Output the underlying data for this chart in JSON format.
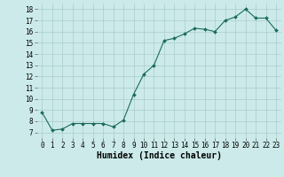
{
  "x": [
    0,
    1,
    2,
    3,
    4,
    5,
    6,
    7,
    8,
    9,
    10,
    11,
    12,
    13,
    14,
    15,
    16,
    17,
    18,
    19,
    20,
    21,
    22,
    23
  ],
  "y": [
    8.8,
    7.2,
    7.3,
    7.8,
    7.8,
    7.8,
    7.8,
    7.5,
    8.1,
    10.4,
    12.2,
    13.0,
    15.2,
    15.4,
    15.8,
    16.3,
    16.2,
    16.0,
    17.0,
    17.3,
    18.0,
    17.2,
    17.2,
    16.1
  ],
  "line_color": "#1a6b5a",
  "marker": "D",
  "marker_size": 2.0,
  "bg_color": "#cceaea",
  "grid_color": "#aacccc",
  "xlabel": "Humidex (Indice chaleur)",
  "ylim": [
    6.5,
    18.5
  ],
  "xlim": [
    -0.5,
    23.5
  ],
  "yticks": [
    7,
    8,
    9,
    10,
    11,
    12,
    13,
    14,
    15,
    16,
    17,
    18
  ],
  "xticks": [
    0,
    1,
    2,
    3,
    4,
    5,
    6,
    7,
    8,
    9,
    10,
    11,
    12,
    13,
    14,
    15,
    16,
    17,
    18,
    19,
    20,
    21,
    22,
    23
  ],
  "tick_fontsize": 5.5,
  "xlabel_fontsize": 7.0
}
